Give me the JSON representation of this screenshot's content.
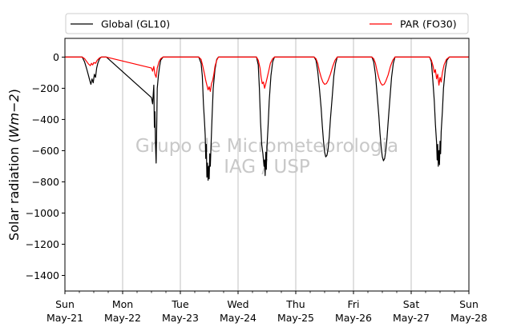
{
  "chart_data": {
    "type": "line",
    "title": "",
    "xlabel": "",
    "ylabel": "Solar radiation (Wm−2)",
    "ylabel_parts": {
      "main": "Solar radiation (",
      "unit_base": "Wm",
      "unit_exp": "−2",
      "close": ")"
    },
    "watermark": [
      "Grupo de Micrometeorologia",
      "IAG / USP"
    ],
    "xlim": [
      0,
      7
    ],
    "ylim": [
      -1500,
      120
    ],
    "yticks": [
      0,
      -200,
      -400,
      -600,
      -800,
      -1000,
      -1200,
      -1400
    ],
    "xticks": [
      {
        "x": 0,
        "day": "Sun",
        "date": "May-21"
      },
      {
        "x": 1,
        "day": "Mon",
        "date": "May-22"
      },
      {
        "x": 2,
        "day": "Tue",
        "date": "May-23"
      },
      {
        "x": 3,
        "day": "Wed",
        "date": "May-24"
      },
      {
        "x": 4,
        "day": "Thu",
        "date": "May-25"
      },
      {
        "x": 5,
        "day": "Fri",
        "date": "May-26"
      },
      {
        "x": 6,
        "day": "Sat",
        "date": "May-27"
      },
      {
        "x": 7,
        "day": "Sun",
        "date": "May-28"
      }
    ],
    "x_unit": "days since Sun May-21 00:00",
    "grid": "vertical",
    "legend_position": "top",
    "series": [
      {
        "name": "Global (GL10)",
        "color": "#000000",
        "points": [
          [
            0.0,
            0
          ],
          [
            0.3,
            0
          ],
          [
            0.34,
            -30
          ],
          [
            0.38,
            -80
          ],
          [
            0.41,
            -120
          ],
          [
            0.43,
            -150
          ],
          [
            0.45,
            -175
          ],
          [
            0.47,
            -140
          ],
          [
            0.49,
            -165
          ],
          [
            0.51,
            -110
          ],
          [
            0.53,
            -130
          ],
          [
            0.55,
            -70
          ],
          [
            0.57,
            -40
          ],
          [
            0.6,
            -10
          ],
          [
            0.63,
            0
          ],
          [
            0.72,
            0
          ],
          [
            1.5,
            -260
          ],
          [
            1.52,
            -300
          ],
          [
            1.54,
            -180
          ],
          [
            1.55,
            -450
          ],
          [
            1.56,
            -350
          ],
          [
            1.57,
            -560
          ],
          [
            1.58,
            -680
          ],
          [
            1.59,
            -450
          ],
          [
            1.6,
            -200
          ],
          [
            1.62,
            -120
          ],
          [
            1.64,
            -60
          ],
          [
            1.66,
            -20
          ],
          [
            1.7,
            0
          ],
          [
            2.32,
            0
          ],
          [
            2.36,
            -40
          ],
          [
            2.38,
            -120
          ],
          [
            2.4,
            -300
          ],
          [
            2.42,
            -420
          ],
          [
            2.43,
            -500
          ],
          [
            2.44,
            -650
          ],
          [
            2.45,
            -560
          ],
          [
            2.46,
            -770
          ],
          [
            2.47,
            -680
          ],
          [
            2.48,
            -790
          ],
          [
            2.49,
            -700
          ],
          [
            2.5,
            -780
          ],
          [
            2.51,
            -620
          ],
          [
            2.52,
            -700
          ],
          [
            2.53,
            -580
          ],
          [
            2.55,
            -380
          ],
          [
            2.57,
            -200
          ],
          [
            2.6,
            -80
          ],
          [
            2.63,
            -15
          ],
          [
            2.66,
            0
          ],
          [
            3.32,
            0
          ],
          [
            3.35,
            -50
          ],
          [
            3.37,
            -200
          ],
          [
            3.39,
            -420
          ],
          [
            3.41,
            -560
          ],
          [
            3.43,
            -620
          ],
          [
            3.45,
            -700
          ],
          [
            3.46,
            -660
          ],
          [
            3.47,
            -760
          ],
          [
            3.48,
            -610
          ],
          [
            3.49,
            -720
          ],
          [
            3.5,
            -580
          ],
          [
            3.52,
            -450
          ],
          [
            3.54,
            -280
          ],
          [
            3.57,
            -120
          ],
          [
            3.6,
            -30
          ],
          [
            3.63,
            0
          ],
          [
            4.32,
            0
          ],
          [
            4.35,
            -20
          ],
          [
            4.38,
            -90
          ],
          [
            4.41,
            -200
          ],
          [
            4.44,
            -330
          ],
          [
            4.46,
            -440
          ],
          [
            4.48,
            -540
          ],
          [
            4.5,
            -610
          ],
          [
            4.52,
            -640
          ],
          [
            4.54,
            -630
          ],
          [
            4.56,
            -590
          ],
          [
            4.58,
            -510
          ],
          [
            4.6,
            -400
          ],
          [
            4.63,
            -260
          ],
          [
            4.66,
            -120
          ],
          [
            4.69,
            -40
          ],
          [
            4.72,
            0
          ],
          [
            5.32,
            0
          ],
          [
            5.35,
            -30
          ],
          [
            5.38,
            -110
          ],
          [
            5.41,
            -240
          ],
          [
            5.44,
            -380
          ],
          [
            5.46,
            -490
          ],
          [
            5.48,
            -580
          ],
          [
            5.5,
            -640
          ],
          [
            5.52,
            -665
          ],
          [
            5.54,
            -650
          ],
          [
            5.56,
            -600
          ],
          [
            5.58,
            -520
          ],
          [
            5.6,
            -420
          ],
          [
            5.63,
            -270
          ],
          [
            5.66,
            -130
          ],
          [
            5.69,
            -40
          ],
          [
            5.72,
            0
          ],
          [
            6.32,
            0
          ],
          [
            6.35,
            -30
          ],
          [
            6.37,
            -120
          ],
          [
            6.4,
            -280
          ],
          [
            6.42,
            -430
          ],
          [
            6.44,
            -550
          ],
          [
            6.45,
            -660
          ],
          [
            6.46,
            -560
          ],
          [
            6.47,
            -700
          ],
          [
            6.48,
            -600
          ],
          [
            6.49,
            -690
          ],
          [
            6.5,
            -540
          ],
          [
            6.51,
            -620
          ],
          [
            6.52,
            -480
          ],
          [
            6.54,
            -350
          ],
          [
            6.56,
            -200
          ],
          [
            6.59,
            -80
          ],
          [
            6.62,
            -20
          ],
          [
            6.66,
            0
          ],
          [
            7.0,
            0
          ]
        ]
      },
      {
        "name": "PAR (FO30)",
        "color": "#ff0000",
        "points": [
          [
            0.0,
            0
          ],
          [
            0.3,
            0
          ],
          [
            0.34,
            -10
          ],
          [
            0.38,
            -30
          ],
          [
            0.41,
            -45
          ],
          [
            0.44,
            -55
          ],
          [
            0.46,
            -40
          ],
          [
            0.48,
            -50
          ],
          [
            0.5,
            -35
          ],
          [
            0.53,
            -40
          ],
          [
            0.56,
            -20
          ],
          [
            0.6,
            -5
          ],
          [
            0.63,
            0
          ],
          [
            0.72,
            0
          ],
          [
            1.5,
            -70
          ],
          [
            1.52,
            -90
          ],
          [
            1.54,
            -60
          ],
          [
            1.56,
            -110
          ],
          [
            1.58,
            -130
          ],
          [
            1.6,
            -70
          ],
          [
            1.63,
            -30
          ],
          [
            1.66,
            -10
          ],
          [
            1.7,
            0
          ],
          [
            2.32,
            0
          ],
          [
            2.36,
            -15
          ],
          [
            2.39,
            -60
          ],
          [
            2.42,
            -110
          ],
          [
            2.44,
            -150
          ],
          [
            2.46,
            -180
          ],
          [
            2.48,
            -210
          ],
          [
            2.5,
            -190
          ],
          [
            2.52,
            -220
          ],
          [
            2.54,
            -170
          ],
          [
            2.56,
            -150
          ],
          [
            2.58,
            -110
          ],
          [
            2.6,
            -60
          ],
          [
            2.63,
            -20
          ],
          [
            2.66,
            0
          ],
          [
            3.32,
            0
          ],
          [
            3.35,
            -20
          ],
          [
            3.38,
            -70
          ],
          [
            3.4,
            -130
          ],
          [
            3.42,
            -170
          ],
          [
            3.44,
            -160
          ],
          [
            3.46,
            -200
          ],
          [
            3.48,
            -170
          ],
          [
            3.5,
            -140
          ],
          [
            3.53,
            -90
          ],
          [
            3.56,
            -40
          ],
          [
            3.6,
            -10
          ],
          [
            3.63,
            0
          ],
          [
            4.32,
            0
          ],
          [
            4.35,
            -10
          ],
          [
            4.38,
            -40
          ],
          [
            4.41,
            -90
          ],
          [
            4.44,
            -130
          ],
          [
            4.47,
            -160
          ],
          [
            4.5,
            -175
          ],
          [
            4.53,
            -170
          ],
          [
            4.56,
            -150
          ],
          [
            4.6,
            -110
          ],
          [
            4.64,
            -60
          ],
          [
            4.68,
            -20
          ],
          [
            4.72,
            0
          ],
          [
            5.32,
            0
          ],
          [
            5.35,
            -10
          ],
          [
            5.38,
            -40
          ],
          [
            5.41,
            -90
          ],
          [
            5.44,
            -135
          ],
          [
            5.47,
            -165
          ],
          [
            5.5,
            -180
          ],
          [
            5.53,
            -175
          ],
          [
            5.56,
            -155
          ],
          [
            5.6,
            -115
          ],
          [
            5.64,
            -60
          ],
          [
            5.68,
            -20
          ],
          [
            5.72,
            0
          ],
          [
            6.32,
            0
          ],
          [
            6.35,
            -20
          ],
          [
            6.38,
            -60
          ],
          [
            6.4,
            -100
          ],
          [
            6.42,
            -80
          ],
          [
            6.44,
            -140
          ],
          [
            6.46,
            -110
          ],
          [
            6.48,
            -180
          ],
          [
            6.5,
            -130
          ],
          [
            6.52,
            -160
          ],
          [
            6.54,
            -100
          ],
          [
            6.57,
            -50
          ],
          [
            6.61,
            -15
          ],
          [
            6.66,
            0
          ],
          [
            7.0,
            0
          ]
        ]
      }
    ]
  }
}
